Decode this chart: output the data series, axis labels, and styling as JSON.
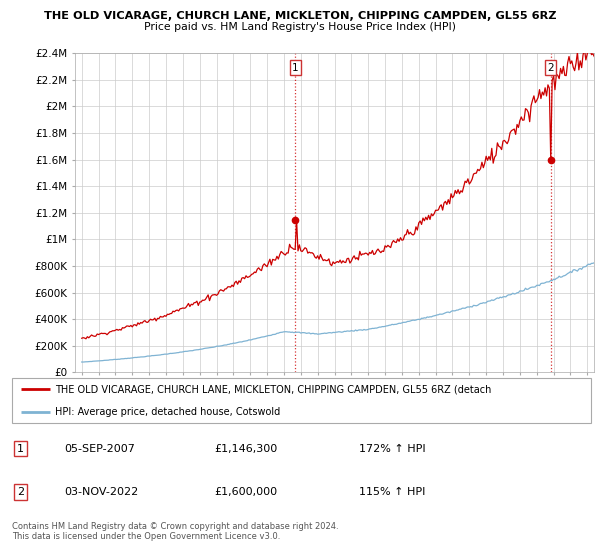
{
  "title_line1": "THE OLD VICARAGE, CHURCH LANE, MICKLETON, CHIPPING CAMPDEN, GL55 6RZ",
  "title_line2": "Price paid vs. HM Land Registry's House Price Index (HPI)",
  "hpi_label": "HPI: Average price, detached house, Cotswold",
  "property_label": "THE OLD VICARAGE, CHURCH LANE, MICKLETON, CHIPPING CAMPDEN, GL55 6RZ (detach",
  "sale1_date": "05-SEP-2007",
  "sale1_price": 1146300,
  "sale1_hpi": "172% ↑ HPI",
  "sale2_date": "03-NOV-2022",
  "sale2_price": 1600000,
  "sale2_hpi": "115% ↑ HPI",
  "footer": "Contains HM Land Registry data © Crown copyright and database right 2024.\nThis data is licensed under the Open Government Licence v3.0.",
  "ylim": [
    0,
    2400000
  ],
  "yticks": [
    0,
    200000,
    400000,
    600000,
    800000,
    1000000,
    1200000,
    1400000,
    1600000,
    1800000,
    2000000,
    2200000,
    2400000
  ],
  "property_color": "#cc0000",
  "hpi_color": "#7fb3d3",
  "sale_vline_color": "#cc0000",
  "background_color": "#ffffff",
  "grid_color": "#cccccc",
  "sale1_x": 2007.667,
  "sale2_x": 2022.833
}
